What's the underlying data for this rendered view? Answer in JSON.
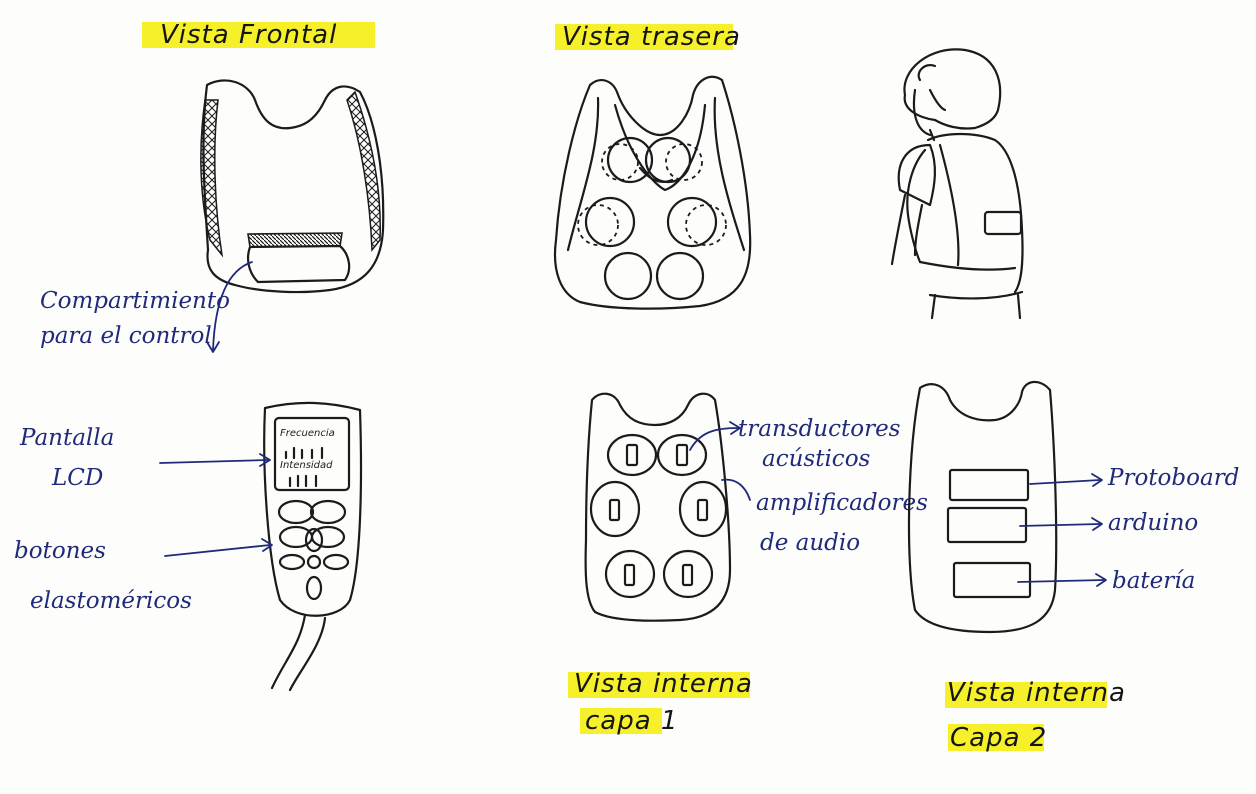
{
  "colors": {
    "highlight": "#f5f02a",
    "sketch_ink": "#1b1b1b",
    "annotation_ink": "#1f2a7a",
    "paper": "#fdfdfc"
  },
  "views": {
    "front": {
      "title": "Vista Frontal"
    },
    "back": {
      "title": "Vista trasera"
    },
    "internal_1": {
      "title": "Vista interna",
      "layer": "capa 1"
    },
    "internal_2": {
      "title": "Vista interna",
      "layer": "Capa 2"
    }
  },
  "annotations": {
    "compartment": {
      "line1": "Compartimiento",
      "line2": "para el control"
    },
    "lcd": {
      "line1": "Pantalla",
      "line2": "LCD"
    },
    "buttons": {
      "line1": "botones",
      "line2": "elastoméricos"
    },
    "transducers": {
      "line1": "transductores",
      "line2": "acústicos"
    },
    "amplifiers": {
      "line1": "amplificadores",
      "line2": "de audio"
    },
    "protoboard": "Protoboard",
    "arduino": "arduino",
    "battery": "batería"
  },
  "controller_screen": {
    "line1": "Frecuencia",
    "line2": "Intensidad"
  }
}
